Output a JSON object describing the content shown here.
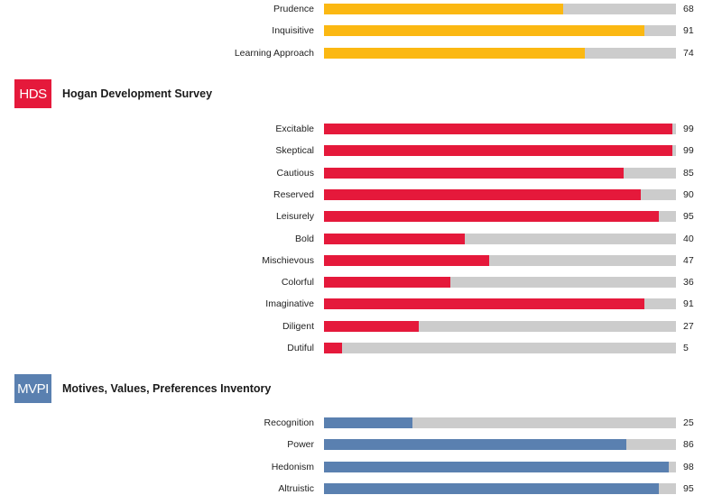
{
  "colors": {
    "hpi_bar": "#fbb812",
    "hds_bar": "#e5193b",
    "mvpi_bar": "#5a80b0",
    "track": "#cccccc"
  },
  "sections": [
    {
      "key": "hpi",
      "badge": "",
      "title": "",
      "color": "#fbb812",
      "rows": [
        {
          "label": "Prudence",
          "value": 68
        },
        {
          "label": "Inquisitive",
          "value": 91
        },
        {
          "label": "Learning Approach",
          "value": 74
        }
      ]
    },
    {
      "key": "hds",
      "badge": "HDS",
      "title": "Hogan Development Survey",
      "color": "#e5193b",
      "rows": [
        {
          "label": "Excitable",
          "value": 99
        },
        {
          "label": "Skeptical",
          "value": 99
        },
        {
          "label": "Cautious",
          "value": 85
        },
        {
          "label": "Reserved",
          "value": 90
        },
        {
          "label": "Leisurely",
          "value": 95
        },
        {
          "label": "Bold",
          "value": 40
        },
        {
          "label": "Mischievous",
          "value": 47
        },
        {
          "label": "Colorful",
          "value": 36
        },
        {
          "label": "Imaginative",
          "value": 91
        },
        {
          "label": "Diligent",
          "value": 27
        },
        {
          "label": "Dutiful",
          "value": 5
        }
      ]
    },
    {
      "key": "mvpi",
      "badge": "MVPI",
      "title": "Motives, Values, Preferences Inventory",
      "color": "#5a80b0",
      "rows": [
        {
          "label": "Recognition",
          "value": 25
        },
        {
          "label": "Power",
          "value": 86
        },
        {
          "label": "Hedonism",
          "value": 98
        },
        {
          "label": "Altruistic",
          "value": 95
        }
      ]
    }
  ],
  "chart_data": [
    {
      "type": "bar",
      "orientation": "horizontal",
      "categories": [
        "Prudence",
        "Inquisitive",
        "Learning Approach"
      ],
      "values": [
        68,
        91,
        74
      ],
      "ylim": [
        0,
        100
      ]
    },
    {
      "type": "bar",
      "orientation": "horizontal",
      "title": "Hogan Development Survey",
      "categories": [
        "Excitable",
        "Skeptical",
        "Cautious",
        "Reserved",
        "Leisurely",
        "Bold",
        "Mischievous",
        "Colorful",
        "Imaginative",
        "Diligent",
        "Dutiful"
      ],
      "values": [
        99,
        99,
        85,
        90,
        95,
        40,
        47,
        36,
        91,
        27,
        5
      ],
      "ylim": [
        0,
        100
      ]
    },
    {
      "type": "bar",
      "orientation": "horizontal",
      "title": "Motives, Values, Preferences Inventory",
      "categories": [
        "Recognition",
        "Power",
        "Hedonism",
        "Altruistic"
      ],
      "values": [
        25,
        86,
        98,
        95
      ],
      "ylim": [
        0,
        100
      ]
    }
  ]
}
